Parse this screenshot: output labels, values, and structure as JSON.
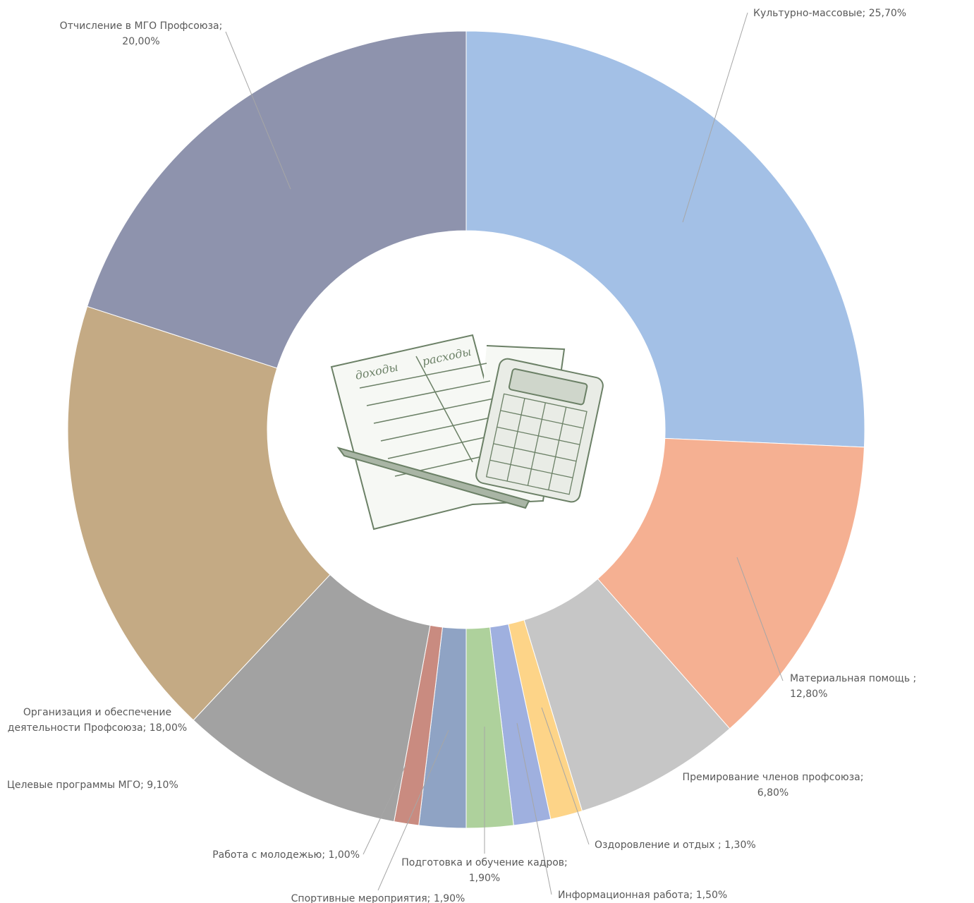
{
  "chart_data": {
    "type": "donut",
    "categories": [
      "Культурно-массовые;",
      "Материальная помощь ;",
      "Премирование членов профсоюза;",
      "Оздоровление и отдых ;",
      "Информационная работа;",
      "Подготовка и обучение кадров;",
      "Спортивные мероприятия;",
      "Работа с молодежью;",
      "Целевые программы МГО;",
      "Организация и обеспечение деятельности Профсоюза;",
      "Отчисление в МГО Профсоюза;"
    ],
    "values": [
      25.7,
      12.8,
      6.8,
      1.3,
      1.5,
      1.9,
      1.9,
      1.0,
      9.1,
      18.0,
      20.0
    ],
    "value_labels": [
      "25,70%",
      "12,80%",
      "6,80%",
      "1,30%",
      "1,50%",
      "1,90%",
      "1,90%",
      "1,00%",
      "9,10%",
      "18,00%",
      "20,00%"
    ],
    "colors": [
      "#a3c0e6",
      "#f5b092",
      "#c6c6c6",
      "#fdd488",
      "#9fb0df",
      "#aed19c",
      "#8fa3c4",
      "#c98b80",
      "#a2a2a2",
      "#c4aa84",
      "#8e93ad"
    ]
  },
  "illustration": {
    "labels": [
      "доходы",
      "расходы"
    ]
  }
}
